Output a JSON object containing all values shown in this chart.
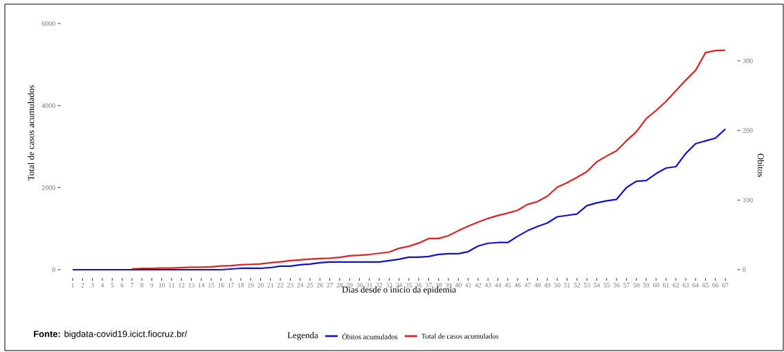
{
  "chart_data": {
    "type": "line",
    "xlabel": "Dias desde o início da epidemia",
    "ylabel": "Total de casos acumulados",
    "y2label": "Obitos",
    "legend_title": "Legenda",
    "legend": "bottom",
    "categories": [
      "1",
      "2",
      "3",
      "4",
      "5",
      "6",
      "7",
      "8",
      "9",
      "10",
      "11",
      "12",
      "13",
      "14",
      "15",
      "16",
      "17",
      "18",
      "19",
      "20",
      "21",
      "22",
      "23",
      "24",
      "25",
      "26",
      "27",
      "28",
      "29",
      "30",
      "31",
      "32",
      "33",
      "34",
      "35",
      "36",
      "37",
      "38",
      "39",
      "40",
      "41",
      "42",
      "43",
      "44",
      "45",
      "46",
      "47",
      "48",
      "49",
      "50",
      "51",
      "52",
      "53",
      "54",
      "55",
      "56",
      "57",
      "58",
      "59",
      "60",
      "61",
      "62",
      "63",
      "64",
      "65",
      "66",
      "67"
    ],
    "series": [
      {
        "name": "Óbitos acumulados",
        "color": "#1010d0",
        "axis": "y2",
        "values": [
          0,
          0,
          0,
          0,
          0,
          0,
          0,
          0,
          0,
          0,
          0,
          0,
          0,
          0,
          0,
          0,
          1,
          2,
          2,
          2,
          3,
          5,
          5,
          7,
          8,
          10,
          11,
          11,
          11,
          11,
          11,
          11,
          13,
          15,
          18,
          18,
          19,
          22,
          23,
          23,
          26,
          34,
          38,
          39,
          39,
          48,
          56,
          62,
          67,
          76,
          78,
          80,
          92,
          96,
          99,
          101,
          118,
          127,
          128,
          138,
          146,
          148,
          167,
          181,
          185,
          189,
          202
        ]
      },
      {
        "name": "Total de casos acumulados",
        "color": "#e02020",
        "values": [
          null,
          null,
          null,
          null,
          null,
          null,
          20,
          30,
          30,
          40,
          40,
          50,
          60,
          60,
          70,
          90,
          100,
          120,
          130,
          140,
          170,
          190,
          220,
          240,
          260,
          270,
          280,
          300,
          340,
          350,
          370,
          400,
          430,
          520,
          570,
          650,
          760,
          760,
          830,
          950,
          1060,
          1160,
          1250,
          1320,
          1380,
          1450,
          1590,
          1660,
          1790,
          2010,
          2120,
          2250,
          2390,
          2630,
          2770,
          2900,
          3140,
          3360,
          3680,
          3880,
          4100,
          4360,
          4620,
          4860,
          5290,
          5340,
          5350
        ]
      }
    ],
    "ylim": [
      0,
      6000
    ],
    "yticks": [
      0,
      2000,
      4000,
      6000
    ],
    "y2lim": [
      0,
      300
    ],
    "y2ticks": [
      0,
      100,
      200,
      300
    ],
    "annotations": [
      "**Fonte:** bigdata-covid19.icict.fiocruz.br/"
    ]
  }
}
